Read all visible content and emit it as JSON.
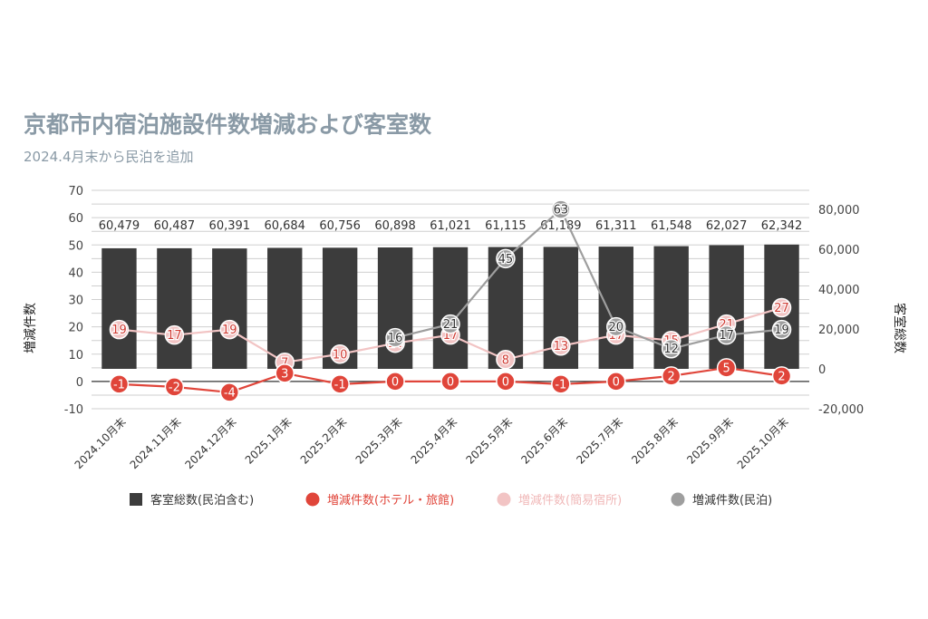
{
  "title": "京都市内宿泊施設件数増減および客室数",
  "subtitle": "2024.4月末から民泊を追加",
  "chart_data": {
    "type": "bar",
    "categories": [
      "2024.10月末",
      "2024.11月末",
      "2024.12月末",
      "2025.1月末",
      "2025.2月末",
      "2025.3月末",
      "2025.4月末",
      "2025.5月末",
      "2025.6月末",
      "2025.7月末",
      "2025.8月末",
      "2025.9月末",
      "2025.10月末"
    ],
    "left_axis": {
      "label": "増減件数",
      "min": -10,
      "max": 70,
      "ticks": [
        -10,
        0,
        10,
        20,
        30,
        40,
        50,
        60,
        70
      ]
    },
    "right_axis": {
      "label": "客室総数",
      "min": -20000,
      "max": 80000,
      "ticks": [
        -20000,
        0,
        20000,
        40000,
        60000,
        80000
      ],
      "tick_labels": [
        "-20,000",
        "0",
        "20,000",
        "40,000",
        "60,000",
        "80,000"
      ]
    },
    "series": [
      {
        "name": "客室総数(民泊含む)",
        "type": "bar",
        "axis": "right",
        "color": "#3c3c3c",
        "values": [
          60479,
          60487,
          60391,
          60684,
          60756,
          60898,
          61021,
          61115,
          61189,
          61311,
          61548,
          62027,
          62342
        ],
        "labels": [
          "60,479",
          "60,487",
          "60,391",
          "60,684",
          "60,756",
          "60,898",
          "61,021",
          "61,115",
          "61,189",
          "61,311",
          "61,548",
          "62,027",
          "62,342"
        ]
      },
      {
        "name": "増減件数(ホテル・旅館)",
        "type": "line",
        "axis": "left",
        "color": "#e0453a",
        "values": [
          -1,
          -2,
          -4,
          3,
          -1,
          0,
          0,
          0,
          -1,
          0,
          2,
          5,
          2
        ]
      },
      {
        "name": "増減件数(簡易宿所)",
        "type": "line",
        "axis": "left",
        "color": "#f2c4c4",
        "values": [
          19,
          17,
          19,
          7,
          10,
          14,
          17,
          8,
          13,
          17,
          15,
          21,
          27
        ]
      },
      {
        "name": "増減件数(民泊)",
        "type": "line",
        "axis": "left",
        "color": "#9e9e9e",
        "values": [
          null,
          null,
          null,
          null,
          null,
          16,
          21,
          45,
          63,
          20,
          12,
          17,
          19
        ]
      }
    ],
    "grid": true,
    "legend_position": "bottom"
  }
}
